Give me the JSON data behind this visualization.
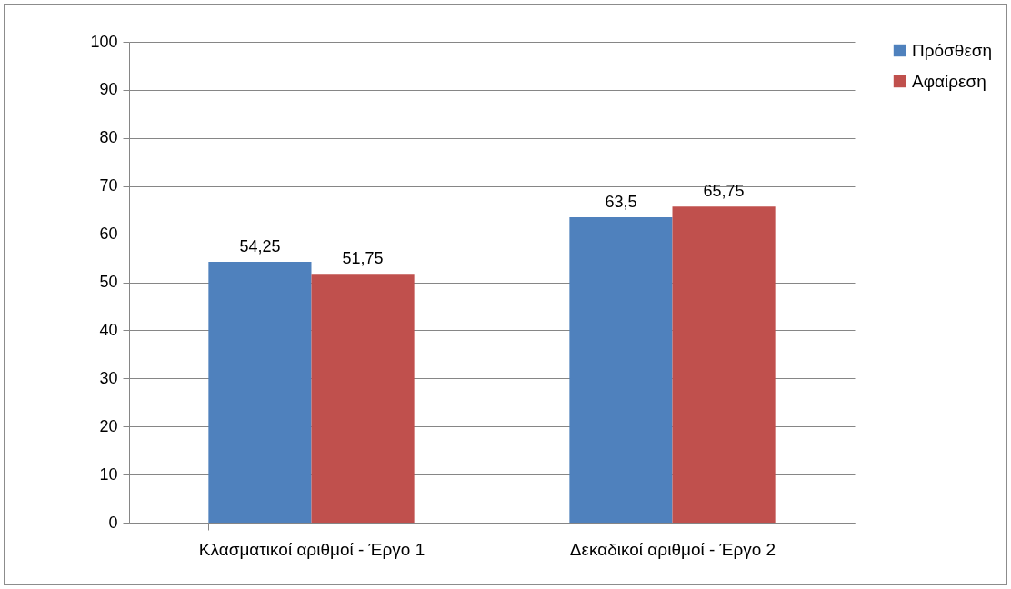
{
  "chart_data": {
    "type": "bar",
    "categories": [
      "Κλασματικοί αριθμοί - Έργο 1",
      "Δεκαδικοί αριθμοί - Έργο 2"
    ],
    "series": [
      {
        "name": "Πρόσθεση",
        "color": "#4f81bd",
        "values": [
          54.25,
          63.5
        ],
        "value_labels": [
          "54,25",
          "63,5"
        ]
      },
      {
        "name": "Αφαίρεση",
        "color": "#c0504d",
        "values": [
          51.75,
          65.75
        ],
        "value_labels": [
          "51,75",
          "65,75"
        ]
      }
    ],
    "ylim": [
      0,
      100
    ],
    "yticks": [
      0,
      10,
      20,
      30,
      40,
      50,
      60,
      70,
      80,
      90,
      100
    ],
    "grid": "y",
    "legend": "right"
  }
}
